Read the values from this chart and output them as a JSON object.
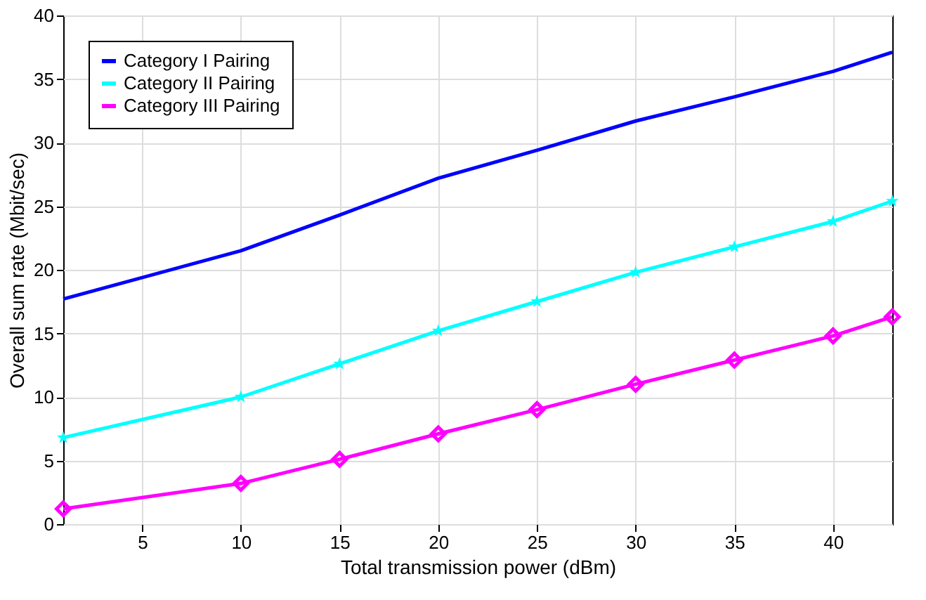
{
  "chart_data": {
    "type": "line",
    "xlabel": "Total transmission power (dBm)",
    "ylabel": "Overall sum rate (Mbit/sec)",
    "x": [
      1,
      10,
      15,
      20,
      25,
      30,
      35,
      40,
      43
    ],
    "series": [
      {
        "name": "Category I Pairing",
        "color": "#0000ff",
        "marker": "none",
        "values": [
          17.7,
          21.5,
          24.3,
          27.2,
          29.4,
          31.7,
          33.6,
          35.6,
          37.1
        ]
      },
      {
        "name": "Category II Pairing",
        "color": "#00ffff",
        "marker": "star",
        "values": [
          6.8,
          10.0,
          12.6,
          15.2,
          17.5,
          19.8,
          21.8,
          23.8,
          25.4
        ]
      },
      {
        "name": "Category III Pairing",
        "color": "#ff00ff",
        "marker": "diamond",
        "values": [
          1.2,
          3.2,
          5.1,
          7.1,
          9.0,
          11.0,
          12.9,
          14.8,
          16.3
        ]
      }
    ],
    "xlim": [
      1,
      43
    ],
    "xticks": [
      5,
      10,
      15,
      20,
      25,
      30,
      35,
      40
    ],
    "ylim": [
      0,
      40
    ],
    "yticks": [
      0,
      5,
      10,
      15,
      20,
      25,
      30,
      35,
      40
    ],
    "grid": true,
    "legend": "top left",
    "line_style": "solid"
  }
}
